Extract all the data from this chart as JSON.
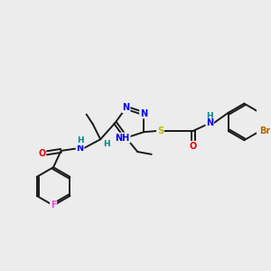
{
  "bg_color": "#ececec",
  "bond_color": "#1a1a1a",
  "atom_colors": {
    "N": "#0000ee",
    "O": "#ee0000",
    "S": "#bbbb00",
    "F": "#ee44ee",
    "Br": "#bb6600",
    "C": "#1a1a1a",
    "H": "#008888"
  },
  "font_size": 7.0,
  "figsize": [
    3.0,
    3.0
  ],
  "dpi": 100
}
